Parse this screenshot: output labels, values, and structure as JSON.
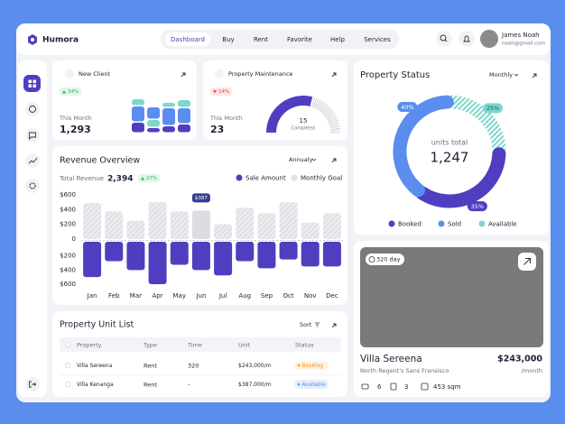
{
  "brand": "Humora",
  "nav": [
    "Dashboard",
    "Buy",
    "Rent",
    "Favorite",
    "Help",
    "Services"
  ],
  "user": {
    "name": "James Noah",
    "email": "noah@gmail.com"
  },
  "new_client": {
    "title": "New Client",
    "change": "34%",
    "period": "This Month",
    "value": "1,293"
  },
  "maintenance": {
    "title": "Property Maintenance",
    "change": "14%",
    "period": "This Month",
    "value": "23",
    "gauge_value": "15",
    "gauge_label": "Completed"
  },
  "revenue": {
    "title": "Revenue Overview",
    "filter": "Annualy",
    "total_label": "Total Revenue",
    "total": "2,394",
    "change": "27%"
  },
  "status": {
    "title": "Property Status",
    "filter": "Monthly"
  },
  "unit_list": {
    "title": "Property Unit List",
    "sort": "Sort",
    "header": [
      "Property",
      "Type",
      "Time",
      "Unit",
      "Status"
    ],
    "rows": [
      [
        "Villa Sereena",
        "Rent",
        "320",
        "$243,000/m",
        "Booking"
      ],
      [
        "Villa Kenanga",
        "Rent",
        "-",
        "$387,000/m",
        "Available"
      ]
    ]
  },
  "listing": {
    "badge": "320 day",
    "name": "Villa Sereena",
    "price": "$243,000",
    "location": "North Regent's Sans Fransisco",
    "per": "/month",
    "features": [
      "6",
      "3",
      "453 sqm"
    ]
  },
  "chart_data": [
    {
      "type": "bar",
      "categories": [
        "Jan",
        "Feb",
        "Mar",
        "Apr",
        "May",
        "Jun",
        "Jul",
        "Aug",
        "Sep",
        "Oct",
        "Nov",
        "Dec"
      ],
      "series": [
        {
          "name": "Sale Amount",
          "color": "#4f3fc0",
          "axis": "y2",
          "values": [
            500,
            275,
            400,
            600,
            325,
            400,
            475,
            275,
            375,
            250,
            350,
            350
          ]
        },
        {
          "name": "Monthly Goal",
          "color": "#e2e2e7",
          "values": [
            490,
            375,
            250,
            500,
            375,
            387,
            200,
            425,
            350,
            500,
            225,
            350
          ],
          "value_labels": [
            null,
            null,
            null,
            null,
            null,
            "$387",
            null,
            null,
            null,
            null,
            null,
            null
          ]
        }
      ],
      "ylim": [
        0,
        600
      ],
      "yticks": [
        {
          "value": 600,
          "label": "$600"
        },
        {
          "value": 400,
          "label": "$400"
        },
        {
          "value": 200,
          "label": "$200"
        },
        0
      ],
      "y2lim": [
        0,
        600
      ],
      "y2ticks": [
        {
          "value": 200,
          "label": "$200"
        },
        {
          "value": 400,
          "label": "$400"
        },
        {
          "value": 600,
          "label": "$600"
        }
      ]
    },
    {
      "type": "pie",
      "categories": [
        "Booked",
        "Sold",
        "Available"
      ],
      "values": [
        35,
        40,
        25
      ],
      "value_labels": [
        "35%",
        "40%",
        "25%"
      ],
      "colors": [
        "#4f3fc0",
        "#5b8def",
        "#7fd6cc"
      ],
      "center_label": "units total",
      "total": "1,247"
    }
  ]
}
